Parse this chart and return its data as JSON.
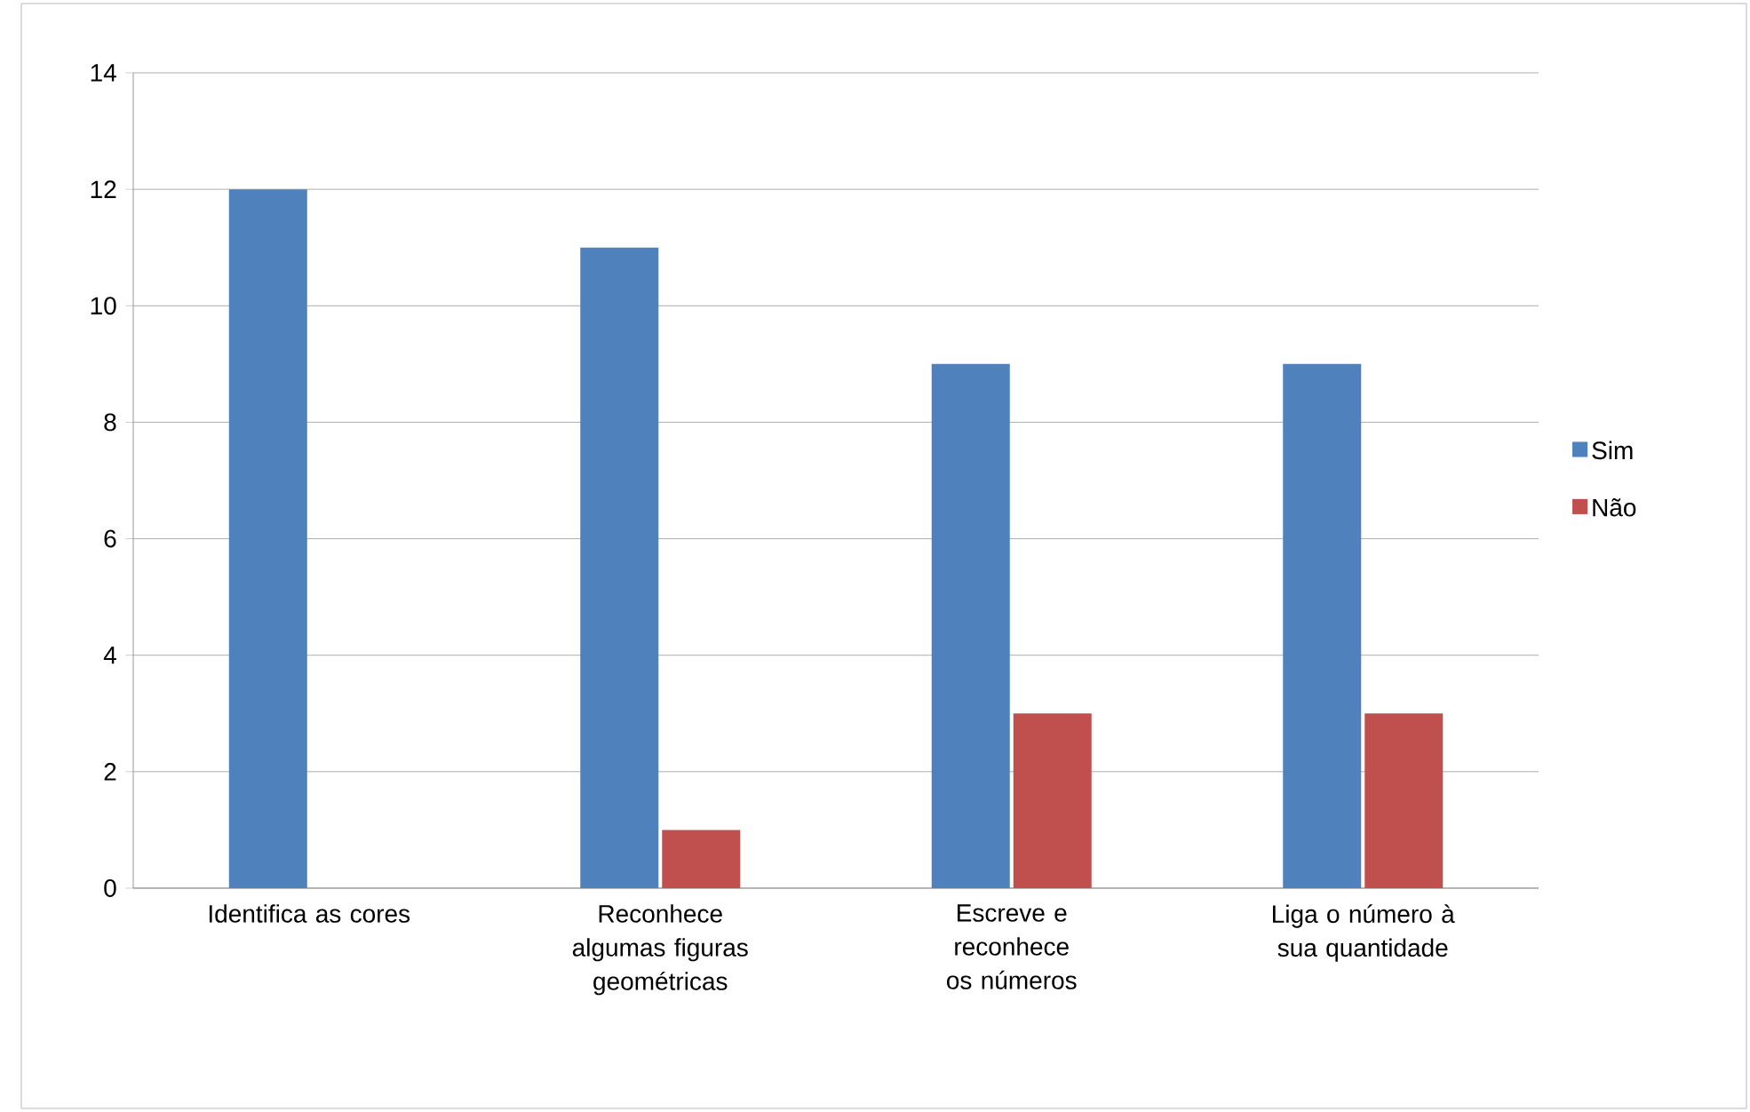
{
  "chart_data": {
    "type": "bar",
    "categories": [
      "Identifica as cores",
      "Reconhece algumas figuras geométricas",
      "Escreve e reconhece os números",
      "Liga o número à sua quantidade"
    ],
    "series": [
      {
        "name": "Sim",
        "color": "#4f81bd",
        "values": [
          12,
          11,
          9,
          9
        ]
      },
      {
        "name": "Não",
        "color": "#c0504d",
        "values": [
          0,
          1,
          3,
          3
        ]
      }
    ],
    "ylim": [
      0,
      14
    ],
    "yticks": [
      0,
      2,
      4,
      6,
      8,
      10,
      12,
      14
    ],
    "grid": "y",
    "legend": "right"
  }
}
